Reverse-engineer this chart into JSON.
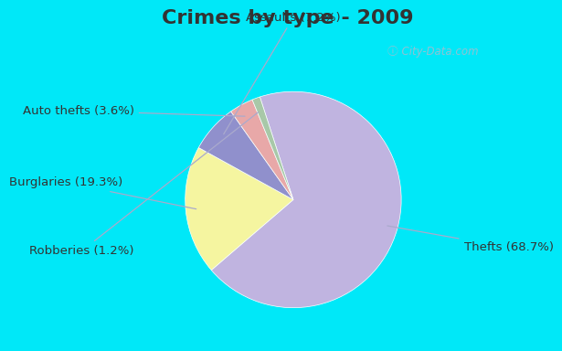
{
  "title": "Crimes by type - 2009",
  "slices": [
    {
      "label": "Thefts (68.7%)",
      "value": 68.7,
      "color": "#c0b4e0"
    },
    {
      "label": "Burglaries (19.3%)",
      "value": 19.3,
      "color": "#f5f5a0"
    },
    {
      "label": "Assaults (7.2%)",
      "value": 7.2,
      "color": "#9090cc"
    },
    {
      "label": "Auto thefts (3.6%)",
      "value": 3.6,
      "color": "#e8a8a8"
    },
    {
      "label": "Robberies (1.2%)",
      "value": 1.2,
      "color": "#a8c8a8"
    }
  ],
  "title_fontsize": 16,
  "label_fontsize": 9.5,
  "title_color": "#333333",
  "label_color": "#333333",
  "fig_bg": "#00e8f8",
  "axes_bg_color": "#e8f8ec",
  "watermark": "City-Data.com",
  "start_angle": 108,
  "label_configs": [
    {
      "xt": 1.45,
      "yt": -0.52,
      "ha": "left",
      "va": "center"
    },
    {
      "xt": -1.55,
      "yt": 0.05,
      "ha": "right",
      "va": "center"
    },
    {
      "xt": -0.05,
      "yt": 1.45,
      "ha": "center",
      "va": "bottom"
    },
    {
      "xt": -1.45,
      "yt": 0.68,
      "ha": "right",
      "va": "center"
    },
    {
      "xt": -1.45,
      "yt": -0.55,
      "ha": "right",
      "va": "center"
    }
  ]
}
